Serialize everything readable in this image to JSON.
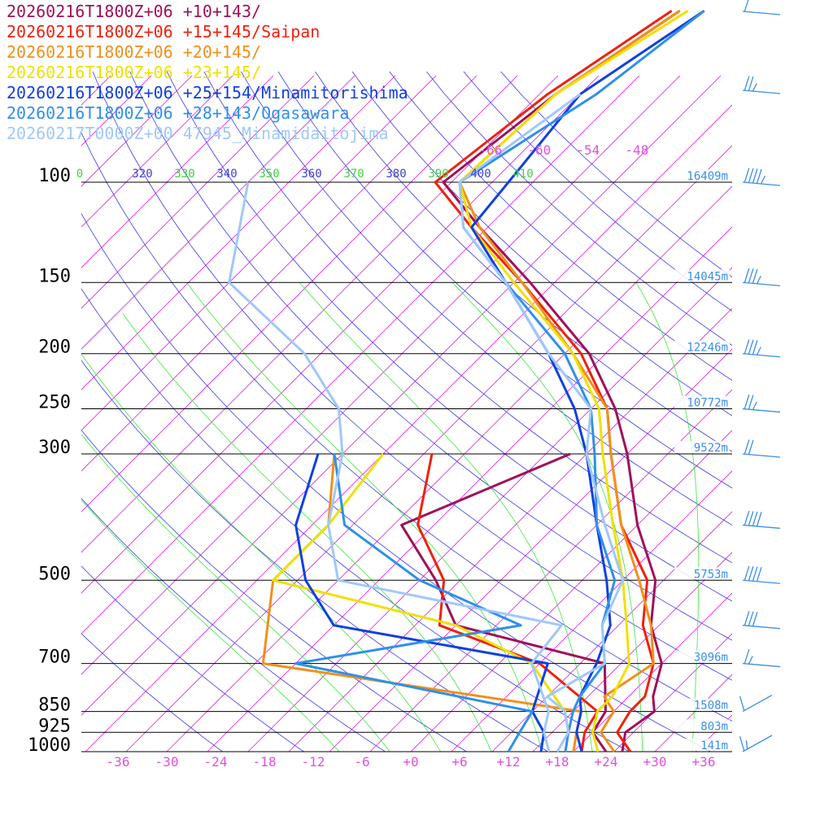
{
  "colors": {
    "isobar": "#000000",
    "isotherm": "#e020e0",
    "dry_adiabat": "#3a3ae8",
    "moist_adiabat": "#3ae83a",
    "wind_barb": "#3a8ee8",
    "height_label": "#3a8ee8",
    "temp_tick": "#e050e0",
    "theta_dry": "#4040d0",
    "theta_moist": "#40d040"
  },
  "chart_data": {
    "type": "line",
    "title": "",
    "xlabel": "",
    "ylabel": "",
    "y_scale": "log-pressure",
    "ylim": [
      1000,
      100
    ],
    "xlim": [
      -40,
      40
    ],
    "grid": true,
    "legend_position": "top-left",
    "pressure_levels": [
      {
        "p": 100,
        "label": "100",
        "height": "16409m"
      },
      {
        "p": 150,
        "label": "150",
        "height": "14045m"
      },
      {
        "p": 200,
        "label": "200",
        "height": "12246m"
      },
      {
        "p": 250,
        "label": "250",
        "height": "10772m"
      },
      {
        "p": 300,
        "label": "300",
        "height": "9522m"
      },
      {
        "p": 500,
        "label": "500",
        "height": "5753m"
      },
      {
        "p": 700,
        "label": "700",
        "height": "3096m"
      },
      {
        "p": 850,
        "label": "850",
        "height": "1508m"
      },
      {
        "p": 925,
        "label": "925",
        "height": "803m"
      },
      {
        "p": 1000,
        "label": "1000",
        "height": "141m"
      }
    ],
    "temperature_ticks": [
      "-36",
      "-30",
      "-24",
      "-18",
      "-12",
      "-6",
      "+0",
      "+6",
      "+12",
      "+18",
      "+24",
      "+30",
      "+36"
    ],
    "upper_isotherm_labels": [
      "-66",
      "-60",
      "-54",
      "-48"
    ],
    "theta_labels": [
      {
        "value": "0",
        "kind": "moist"
      },
      {
        "value": "320",
        "kind": "dry"
      },
      {
        "value": "330",
        "kind": "moist"
      },
      {
        "value": "340",
        "kind": "dry"
      },
      {
        "value": "350",
        "kind": "moist"
      },
      {
        "value": "360",
        "kind": "dry"
      },
      {
        "value": "370",
        "kind": "moist"
      },
      {
        "value": "380",
        "kind": "dry"
      },
      {
        "value": "390",
        "kind": "moist"
      },
      {
        "value": "400",
        "kind": "dry"
      },
      {
        "value": "410",
        "kind": "moist"
      }
    ],
    "series": [
      {
        "name": "20260216T1800Z+06 +10+143/",
        "color": "#a0105a",
        "temperature": [
          [
            1000,
            26
          ],
          [
            925,
            24
          ],
          [
            850,
            25
          ],
          [
            800,
            23
          ],
          [
            700,
            20
          ],
          [
            600,
            14
          ],
          [
            500,
            9
          ],
          [
            400,
            0
          ],
          [
            300,
            -10
          ],
          [
            250,
            -17
          ],
          [
            200,
            -27
          ],
          [
            150,
            -43
          ],
          [
            120,
            -56
          ],
          [
            100,
            -66
          ],
          [
            70,
            -63
          ],
          [
            50,
            -58
          ]
        ],
        "dewpoint": [
          [
            1000,
            24
          ],
          [
            925,
            20
          ],
          [
            850,
            19
          ],
          [
            700,
            13
          ],
          [
            600,
            -10
          ],
          [
            500,
            -18
          ],
          [
            400,
            -29
          ],
          [
            300,
            -17
          ]
        ]
      },
      {
        "name": "20260216T1800Z+06 +15+145/Saipan",
        "color": "#f02010",
        "temperature": [
          [
            1000,
            27
          ],
          [
            925,
            23
          ],
          [
            850,
            22
          ],
          [
            800,
            22
          ],
          [
            700,
            19
          ],
          [
            600,
            13
          ],
          [
            500,
            8
          ],
          [
            400,
            -2
          ],
          [
            300,
            -12
          ],
          [
            250,
            -18
          ],
          [
            200,
            -28
          ],
          [
            150,
            -44
          ],
          [
            120,
            -57
          ],
          [
            100,
            -67
          ],
          [
            70,
            -64
          ],
          [
            50,
            -59
          ]
        ],
        "dewpoint": [
          [
            1000,
            21
          ],
          [
            925,
            19
          ],
          [
            850,
            18
          ],
          [
            700,
            5
          ],
          [
            600,
            -12
          ],
          [
            500,
            -17
          ],
          [
            400,
            -27
          ],
          [
            300,
            -34
          ]
        ]
      },
      {
        "name": "20260216T1800Z+06 +20+145/",
        "color": "#f0901a",
        "temperature": [
          [
            1000,
            25
          ],
          [
            925,
            21
          ],
          [
            850,
            20
          ],
          [
            800,
            17
          ],
          [
            700,
            19
          ],
          [
            600,
            14
          ],
          [
            500,
            7
          ],
          [
            400,
            -2
          ],
          [
            300,
            -12
          ],
          [
            250,
            -18
          ],
          [
            200,
            -29
          ],
          [
            150,
            -44
          ],
          [
            120,
            -56
          ],
          [
            100,
            -64
          ],
          [
            70,
            -63
          ],
          [
            50,
            -58
          ]
        ],
        "dewpoint": [
          [
            1000,
            20
          ],
          [
            925,
            18
          ],
          [
            850,
            16
          ],
          [
            700,
            -29
          ],
          [
            500,
            -38
          ],
          [
            400,
            -38
          ],
          [
            300,
            -46
          ]
        ]
      },
      {
        "name": "20260216T1800Z+06 +23+145/",
        "color": "#f0e000",
        "temperature": [
          [
            1000,
            23
          ],
          [
            925,
            20
          ],
          [
            850,
            18
          ],
          [
            800,
            18
          ],
          [
            700,
            16
          ],
          [
            600,
            11
          ],
          [
            500,
            5
          ],
          [
            400,
            -3
          ],
          [
            300,
            -13
          ],
          [
            250,
            -19
          ],
          [
            200,
            -29
          ],
          [
            150,
            -45
          ],
          [
            120,
            -57
          ],
          [
            100,
            -64
          ],
          [
            70,
            -63
          ],
          [
            50,
            -57
          ]
        ],
        "dewpoint": [
          [
            1000,
            19
          ],
          [
            925,
            17
          ],
          [
            850,
            14
          ],
          [
            700,
            4
          ],
          [
            600,
            -10
          ],
          [
            500,
            -38
          ],
          [
            400,
            -38
          ],
          [
            300,
            -40
          ]
        ]
      },
      {
        "name": "20260216T1800Z+06 +25+154/Minamitorishima",
        "color": "#1040e0",
        "temperature": [
          [
            1000,
            21
          ],
          [
            925,
            18
          ],
          [
            850,
            16
          ],
          [
            800,
            14
          ],
          [
            700,
            12
          ],
          [
            600,
            9
          ],
          [
            500,
            3
          ],
          [
            400,
            -5
          ],
          [
            300,
            -15
          ],
          [
            250,
            -22
          ],
          [
            200,
            -32
          ],
          [
            150,
            -46
          ],
          [
            120,
            -57
          ],
          [
            100,
            -58
          ],
          [
            70,
            -60
          ],
          [
            50,
            -55
          ]
        ],
        "dewpoint": [
          [
            1000,
            16
          ],
          [
            925,
            14
          ],
          [
            850,
            10
          ],
          [
            700,
            6
          ],
          [
            600,
            -25
          ],
          [
            500,
            -34
          ],
          [
            400,
            -42
          ],
          [
            300,
            -48
          ]
        ]
      },
      {
        "name": "20260216T1800Z+06 +28+143/Ogasawara",
        "color": "#3090e8",
        "temperature": [
          [
            1000,
            19
          ],
          [
            925,
            17
          ],
          [
            850,
            15
          ],
          [
            800,
            14
          ],
          [
            700,
            13
          ],
          [
            600,
            8
          ],
          [
            500,
            4
          ],
          [
            400,
            -5
          ],
          [
            300,
            -14
          ],
          [
            250,
            -20
          ],
          [
            200,
            -30
          ],
          [
            150,
            -46
          ],
          [
            120,
            -58
          ],
          [
            100,
            -64
          ],
          [
            70,
            -58
          ],
          [
            50,
            -55
          ]
        ],
        "dewpoint": [
          [
            1000,
            12
          ],
          [
            925,
            11
          ],
          [
            850,
            10
          ],
          [
            700,
            -25
          ],
          [
            600,
            -2
          ],
          [
            500,
            -20
          ],
          [
            400,
            -36
          ],
          [
            300,
            -46
          ]
        ]
      },
      {
        "name": "20260217T0000Z+00 47945_Minamidaitojima",
        "color": "#a0c8f8",
        "temperature": [
          [
            1000,
            18
          ],
          [
            925,
            17
          ],
          [
            850,
            14
          ],
          [
            800,
            10
          ],
          [
            700,
            13
          ],
          [
            600,
            8
          ],
          [
            500,
            5
          ],
          [
            400,
            -4
          ],
          [
            300,
            -15
          ],
          [
            250,
            -20
          ],
          [
            200,
            -32
          ],
          [
            150,
            -46
          ],
          [
            120,
            -58
          ],
          [
            100,
            -64
          ],
          [
            70,
            -60
          ]
        ],
        "dewpoint": [
          [
            1000,
            17
          ],
          [
            925,
            14
          ],
          [
            850,
            12
          ],
          [
            700,
            4
          ],
          [
            600,
            3
          ],
          [
            500,
            -30
          ],
          [
            400,
            -38
          ],
          [
            300,
            -45
          ],
          [
            250,
            -51
          ],
          [
            200,
            -62
          ],
          [
            150,
            -80
          ],
          [
            100,
            -90
          ]
        ]
      }
    ],
    "wind_barbs": [
      {
        "p": 50,
        "speed_kt": 10,
        "direction_deg": 280
      },
      {
        "p": 70,
        "speed_kt": 25,
        "direction_deg": 280
      },
      {
        "p": 100,
        "speed_kt": 45,
        "direction_deg": 280
      },
      {
        "p": 150,
        "speed_kt": 35,
        "direction_deg": 285
      },
      {
        "p": 200,
        "speed_kt": 35,
        "direction_deg": 285
      },
      {
        "p": 250,
        "speed_kt": 25,
        "direction_deg": 285
      },
      {
        "p": 300,
        "speed_kt": 20,
        "direction_deg": 285
      },
      {
        "p": 400,
        "speed_kt": 40,
        "direction_deg": 280
      },
      {
        "p": 500,
        "speed_kt": 40,
        "direction_deg": 280
      },
      {
        "p": 600,
        "speed_kt": 30,
        "direction_deg": 275
      },
      {
        "p": 700,
        "speed_kt": 15,
        "direction_deg": 275
      },
      {
        "p": 850,
        "speed_kt": 10,
        "direction_deg": 60
      },
      {
        "p": 1000,
        "speed_kt": 15,
        "direction_deg": 70
      }
    ]
  }
}
